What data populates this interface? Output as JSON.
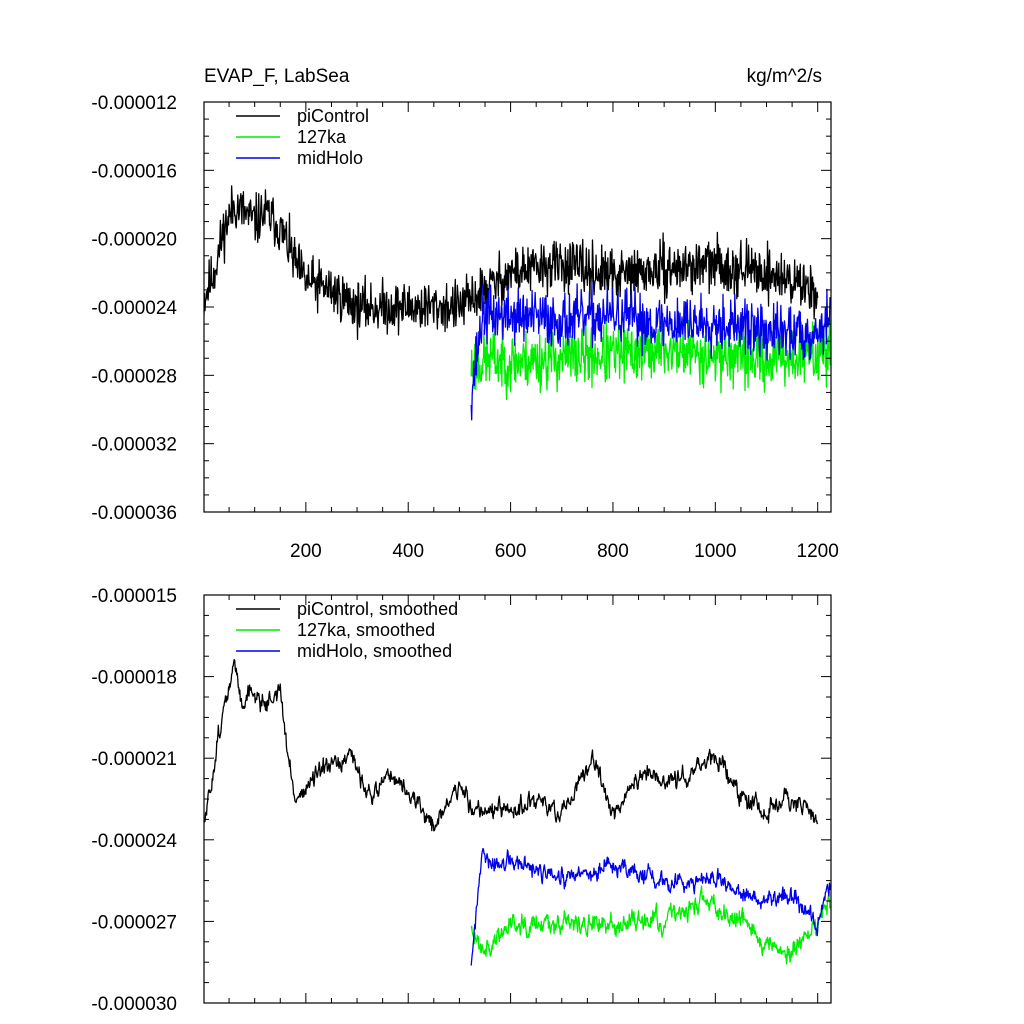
{
  "figure": {
    "title_left": "EVAP_F, LabSea",
    "title_right": "kg/m^2/s"
  },
  "chart_data": [
    {
      "type": "line",
      "title": "EVAP_F, LabSea",
      "units": "kg/m^2/s",
      "xlim": [
        1,
        1226
      ],
      "ylim": [
        -3.6e-05,
        -1.2e-05
      ],
      "x_ticks": [
        200,
        400,
        600,
        800,
        1000,
        1200
      ],
      "x_tick_labels": [
        "200",
        "400",
        "600",
        "800",
        "1000",
        "1200"
      ],
      "y_ticks": [
        -1.2e-05,
        -1.6e-05,
        -2e-05,
        -2.4e-05,
        -2.8e-05,
        -3.2e-05,
        -3.6e-05
      ],
      "y_tick_labels": [
        "-0.000012",
        "-0.000016",
        "-0.000020",
        "-0.000024",
        "-0.000028",
        "-0.000032",
        "-0.000036"
      ],
      "legend_position": "top-left",
      "series": [
        {
          "name": "piControl",
          "color": "#000000",
          "x_start": 1,
          "x_end": 1200,
          "mean_profile_x": [
            1,
            20,
            40,
            60,
            80,
            100,
            120,
            140,
            160,
            180,
            200,
            250,
            300,
            400,
            500,
            600,
            700,
            800,
            900,
            1000,
            1100,
            1200
          ],
          "mean_profile_y": [
            -2.35e-05,
            -2.2e-05,
            -1.95e-05,
            -1.8e-05,
            -1.85e-05,
            -1.9e-05,
            -1.85e-05,
            -1.9e-05,
            -2e-05,
            -2.15e-05,
            -2.25e-05,
            -2.3e-05,
            -2.4e-05,
            -2.4e-05,
            -2.4e-05,
            -2.2e-05,
            -2.15e-05,
            -2.22e-05,
            -2.18e-05,
            -2.15e-05,
            -2.2e-05,
            -2.3e-05
          ],
          "noise": 2.2e-06,
          "seed": 11
        },
        {
          "name": "127ka",
          "color": "#00ee00",
          "x_start": 523,
          "x_end": 1225,
          "mean_profile_x": [
            523,
            560,
            600,
            700,
            800,
            900,
            1000,
            1100,
            1200,
            1225
          ],
          "mean_profile_y": [
            -2.75e-05,
            -2.7e-05,
            -2.72e-05,
            -2.7e-05,
            -2.68e-05,
            -2.65e-05,
            -2.68e-05,
            -2.7e-05,
            -2.68e-05,
            -2.62e-05
          ],
          "noise": 2.6e-06,
          "seed": 23
        },
        {
          "name": "midHolo",
          "color": "#0000ee",
          "x_start": 523,
          "x_end": 1225,
          "mean_profile_x": [
            523,
            545,
            600,
            700,
            800,
            900,
            1000,
            1100,
            1200,
            1225
          ],
          "mean_profile_y": [
            -2.9e-05,
            -2.45e-05,
            -2.45e-05,
            -2.48e-05,
            -2.45e-05,
            -2.5e-05,
            -2.48e-05,
            -2.55e-05,
            -2.55e-05,
            -2.45e-05
          ],
          "noise": 2.4e-06,
          "seed": 37
        }
      ]
    },
    {
      "type": "line",
      "title": "",
      "xlim": [
        1,
        1226
      ],
      "ylim": [
        -3e-05,
        -1.5e-05
      ],
      "x_ticks": [
        200,
        400,
        600,
        800,
        1000,
        1200
      ],
      "x_tick_labels": [],
      "y_ticks": [
        -1.5e-05,
        -1.8e-05,
        -2.1e-05,
        -2.4e-05,
        -2.7e-05,
        -3e-05
      ],
      "y_tick_labels": [
        "-0.000015",
        "-0.000018",
        "-0.000021",
        "-0.000024",
        "-0.000027",
        "-0.000030"
      ],
      "legend_position": "top-left",
      "series": [
        {
          "name": "piControl, smoothed",
          "color": "#000000",
          "x_start": 1,
          "x_end": 1200,
          "mean_profile_x": [
            1,
            15,
            30,
            50,
            60,
            75,
            90,
            120,
            150,
            165,
            180,
            230,
            290,
            330,
            360,
            410,
            450,
            500,
            523,
            600,
            660,
            700,
            760,
            800,
            860,
            900,
            950,
            1000,
            1060,
            1100,
            1140,
            1200
          ],
          "mean_profile_y": [
            -2.35e-05,
            -2.2e-05,
            -2e-05,
            -1.85e-05,
            -1.75e-05,
            -1.9e-05,
            -1.85e-05,
            -1.9e-05,
            -1.85e-05,
            -2.1e-05,
            -2.25e-05,
            -2.15e-05,
            -2.1e-05,
            -2.25e-05,
            -2.15e-05,
            -2.25e-05,
            -2.35e-05,
            -2.2e-05,
            -2.28e-05,
            -2.3e-05,
            -2.25e-05,
            -2.32e-05,
            -2.1e-05,
            -2.3e-05,
            -2.15e-05,
            -2.2e-05,
            -2.15e-05,
            -2.1e-05,
            -2.25e-05,
            -2.3e-05,
            -2.25e-05,
            -2.32e-05
          ],
          "noise": 6e-07,
          "seed": 51
        },
        {
          "name": "127ka, smoothed",
          "color": "#00ee00",
          "x_start": 523,
          "x_end": 1225,
          "mean_profile_x": [
            523,
            560,
            600,
            700,
            780,
            820,
            900,
            980,
            1000,
            1050,
            1100,
            1150,
            1200,
            1225
          ],
          "mean_profile_y": [
            -2.75e-05,
            -2.8e-05,
            -2.7e-05,
            -2.7e-05,
            -2.72e-05,
            -2.7e-05,
            -2.7e-05,
            -2.62e-05,
            -2.65e-05,
            -2.68e-05,
            -2.78e-05,
            -2.82e-05,
            -2.7e-05,
            -2.62e-05
          ],
          "noise": 7e-07,
          "seed": 63
        },
        {
          "name": "midHolo, smoothed",
          "color": "#0000ee",
          "x_start": 523,
          "x_end": 1225,
          "mean_profile_x": [
            523,
            545,
            560,
            600,
            700,
            800,
            900,
            1000,
            1050,
            1100,
            1150,
            1200,
            1225
          ],
          "mean_profile_y": [
            -2.85e-05,
            -2.45e-05,
            -2.5e-05,
            -2.48e-05,
            -2.55e-05,
            -2.5e-05,
            -2.55e-05,
            -2.55e-05,
            -2.6e-05,
            -2.62e-05,
            -2.6e-05,
            -2.72e-05,
            -2.55e-05
          ],
          "noise": 6e-07,
          "seed": 77
        }
      ]
    }
  ]
}
